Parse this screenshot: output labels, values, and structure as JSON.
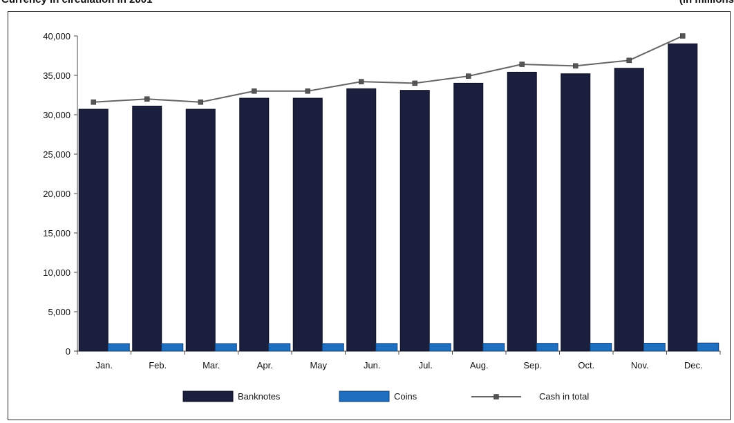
{
  "header": {
    "title_fragment": "Currency in circulation in 2001",
    "unit_fragment": "(in millions"
  },
  "chart_data": {
    "type": "bar",
    "categories": [
      "Jan.",
      "Feb.",
      "Mar.",
      "Apr.",
      "May",
      "Jun.",
      "Jul.",
      "Aug.",
      "Sep.",
      "Oct.",
      "Nov.",
      "Dec."
    ],
    "series": [
      {
        "name": "Banknotes",
        "kind": "bar",
        "color": "#1a1f3d",
        "values": [
          30700,
          31100,
          30700,
          32100,
          32100,
          33300,
          33100,
          34000,
          35400,
          35200,
          35900,
          39000
        ]
      },
      {
        "name": "Coins",
        "kind": "bar",
        "color": "#1f6fc1",
        "values": [
          950,
          950,
          950,
          960,
          960,
          970,
          970,
          980,
          990,
          1000,
          1010,
          1030
        ]
      },
      {
        "name": "Cash in total",
        "kind": "line",
        "color": "#666666",
        "marker": "square",
        "values": [
          31600,
          32000,
          31600,
          33000,
          33000,
          34200,
          34000,
          34900,
          36400,
          36200,
          36900,
          40000
        ]
      }
    ],
    "y_ticks": [
      "0",
      "5,000",
      "10,000",
      "15,000",
      "20,000",
      "25,000",
      "30,000",
      "35,000",
      "40,000"
    ],
    "ylim": [
      0,
      40000
    ],
    "grid": false,
    "legend_position": "bottom"
  }
}
